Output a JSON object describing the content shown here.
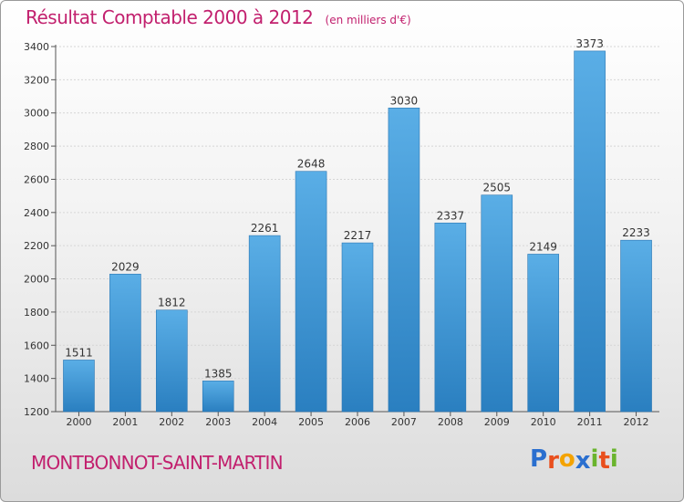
{
  "chart_data": {
    "type": "bar",
    "title": "Résultat Comptable 2000 à 2012",
    "subtitle": "(en milliers d'€)",
    "xlabel": "",
    "ylabel": "",
    "categories": [
      "2000",
      "2001",
      "2002",
      "2003",
      "2004",
      "2005",
      "2006",
      "2007",
      "2008",
      "2009",
      "2010",
      "2011",
      "2012"
    ],
    "values": [
      1511,
      2029,
      1812,
      1385,
      2261,
      2648,
      2217,
      3030,
      2337,
      2505,
      2149,
      3373,
      2233
    ],
    "ylim": [
      1200,
      3400
    ],
    "yticks": [
      1200,
      1400,
      1600,
      1800,
      2000,
      2200,
      2400,
      2600,
      2800,
      3000,
      3200,
      3400
    ],
    "grid": true,
    "legend": "none"
  },
  "footer": {
    "commune": "MONTBONNOT-SAINT-MARTIN",
    "logo_letters": [
      "P",
      "r",
      "o",
      "x",
      "i",
      "t",
      "i"
    ],
    "logo_colors": [
      "#2a6fcf",
      "#e94f1d",
      "#f4a300",
      "#2a6fcf",
      "#6ab42d",
      "#e94f1d",
      "#6ab42d"
    ]
  },
  "colors": {
    "bar_top": "#5aaee6",
    "bar_bottom": "#2a7fc0",
    "title": "#c2206e"
  }
}
